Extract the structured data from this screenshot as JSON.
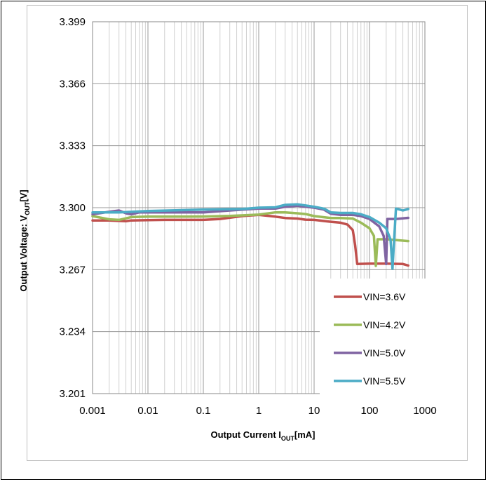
{
  "chart_data": {
    "type": "line",
    "title": "",
    "xlabel": {
      "main": "Output Current I",
      "sub": "OUT",
      "unit": "[mA]"
    },
    "ylabel": {
      "main": "Output Voltage: V",
      "sub": "OUT",
      "unit": "[V]"
    },
    "x_scale": "log",
    "xlim": [
      0.001,
      1000
    ],
    "ylim": [
      3.201,
      3.399
    ],
    "x_ticks": [
      "0.001",
      "0.01",
      "0.1",
      "1",
      "10",
      "100",
      "1000"
    ],
    "y_ticks": [
      "3.399",
      "3.366",
      "3.333",
      "3.300",
      "3.267",
      "3.234",
      "3.201"
    ],
    "grid": true,
    "legend_position": "bottom-right inside plot",
    "series": [
      {
        "name": "VIN=3.6V",
        "color": "#c0504d",
        "points": [
          [
            0.001,
            3.2932
          ],
          [
            0.002,
            3.2932
          ],
          [
            0.004,
            3.2928
          ],
          [
            0.005,
            3.2932
          ],
          [
            0.01,
            3.2934
          ],
          [
            0.02,
            3.2935
          ],
          [
            0.05,
            3.2935
          ],
          [
            0.1,
            3.2935
          ],
          [
            0.2,
            3.294
          ],
          [
            0.5,
            3.2955
          ],
          [
            1,
            3.2962
          ],
          [
            2,
            3.2952
          ],
          [
            3,
            3.2945
          ],
          [
            5,
            3.2942
          ],
          [
            7,
            3.2936
          ],
          [
            10,
            3.2935
          ],
          [
            20,
            3.2925
          ],
          [
            30,
            3.292
          ],
          [
            40,
            3.291
          ],
          [
            50,
            3.288
          ],
          [
            55,
            3.28
          ],
          [
            60,
            3.27
          ],
          [
            100,
            3.2702
          ],
          [
            200,
            3.2702
          ],
          [
            400,
            3.27
          ],
          [
            500,
            3.2692
          ]
        ]
      },
      {
        "name": "VIN=4.2V",
        "color": "#9bbb59",
        "points": [
          [
            0.001,
            3.2955
          ],
          [
            0.002,
            3.2938
          ],
          [
            0.003,
            3.2935
          ],
          [
            0.005,
            3.295
          ],
          [
            0.01,
            3.2952
          ],
          [
            0.05,
            3.2952
          ],
          [
            0.1,
            3.2953
          ],
          [
            0.3,
            3.2956
          ],
          [
            1,
            3.2963
          ],
          [
            2,
            3.2975
          ],
          [
            3,
            3.2975
          ],
          [
            5,
            3.297
          ],
          [
            7,
            3.2966
          ],
          [
            10,
            3.2955
          ],
          [
            20,
            3.2945
          ],
          [
            30,
            3.2945
          ],
          [
            50,
            3.2942
          ],
          [
            70,
            3.292
          ],
          [
            100,
            3.289
          ],
          [
            120,
            3.285
          ],
          [
            130,
            3.269
          ],
          [
            140,
            3.2832
          ],
          [
            200,
            3.2832
          ],
          [
            500,
            3.2822
          ]
        ]
      },
      {
        "name": "VIN=5.0V",
        "color": "#8064a2",
        "points": [
          [
            0.001,
            3.2965
          ],
          [
            0.002,
            3.2978
          ],
          [
            0.003,
            3.2985
          ],
          [
            0.004,
            3.297
          ],
          [
            0.005,
            3.2965
          ],
          [
            0.007,
            3.2975
          ],
          [
            0.01,
            3.2975
          ],
          [
            0.03,
            3.2975
          ],
          [
            0.1,
            3.2975
          ],
          [
            0.3,
            3.2985
          ],
          [
            1,
            3.2995
          ],
          [
            2,
            3.2995
          ],
          [
            3,
            3.3005
          ],
          [
            5,
            3.301
          ],
          [
            7,
            3.3005
          ],
          [
            10,
            3.3
          ],
          [
            15,
            3.299
          ],
          [
            20,
            3.2968
          ],
          [
            30,
            3.2962
          ],
          [
            50,
            3.2962
          ],
          [
            70,
            3.2955
          ],
          [
            100,
            3.294
          ],
          [
            150,
            3.29
          ],
          [
            180,
            3.285
          ],
          [
            200,
            3.27
          ],
          [
            210,
            3.294
          ],
          [
            300,
            3.294
          ],
          [
            500,
            3.2946
          ]
        ]
      },
      {
        "name": "VIN=5.5V",
        "color": "#4bacc6",
        "points": [
          [
            0.001,
            3.2975
          ],
          [
            0.003,
            3.2975
          ],
          [
            0.01,
            3.2982
          ],
          [
            0.1,
            3.299
          ],
          [
            0.5,
            3.2993
          ],
          [
            1,
            3.3
          ],
          [
            2,
            3.3002
          ],
          [
            3,
            3.3015
          ],
          [
            5,
            3.3018
          ],
          [
            7,
            3.3012
          ],
          [
            10,
            3.3005
          ],
          [
            15,
            3.2995
          ],
          [
            20,
            3.2975
          ],
          [
            30,
            3.2972
          ],
          [
            50,
            3.2972
          ],
          [
            70,
            3.2965
          ],
          [
            100,
            3.295
          ],
          [
            150,
            3.292
          ],
          [
            200,
            3.289
          ],
          [
            240,
            3.283
          ],
          [
            260,
            3.2675
          ],
          [
            280,
            3.284
          ],
          [
            300,
            3.2995
          ],
          [
            350,
            3.299
          ],
          [
            400,
            3.2985
          ],
          [
            500,
            3.2993
          ]
        ]
      }
    ]
  }
}
